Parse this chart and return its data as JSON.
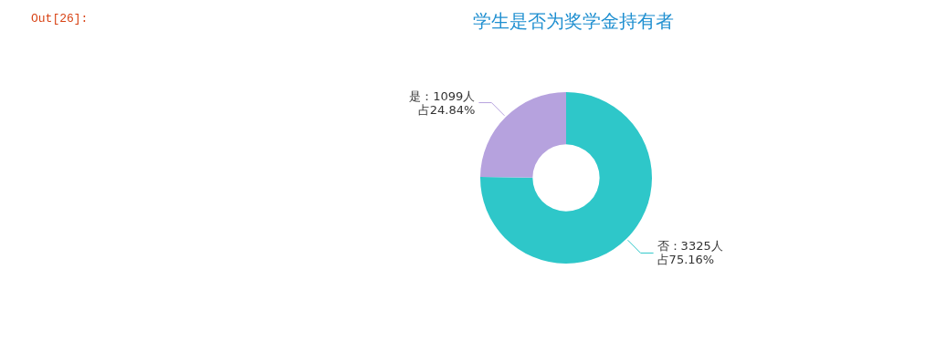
{
  "chart_data": {
    "type": "donut",
    "title": "学生是否为奖学金持有者",
    "categories": [
      "否",
      "是"
    ],
    "values": [
      3325,
      1099
    ],
    "colors": [
      "#2ec7c9",
      "#b6a2de"
    ],
    "value_labels": [
      "3325人占75.16%",
      "1099人占24.84%"
    ],
    "annotations": [
      "Out[26]:"
    ]
  }
}
